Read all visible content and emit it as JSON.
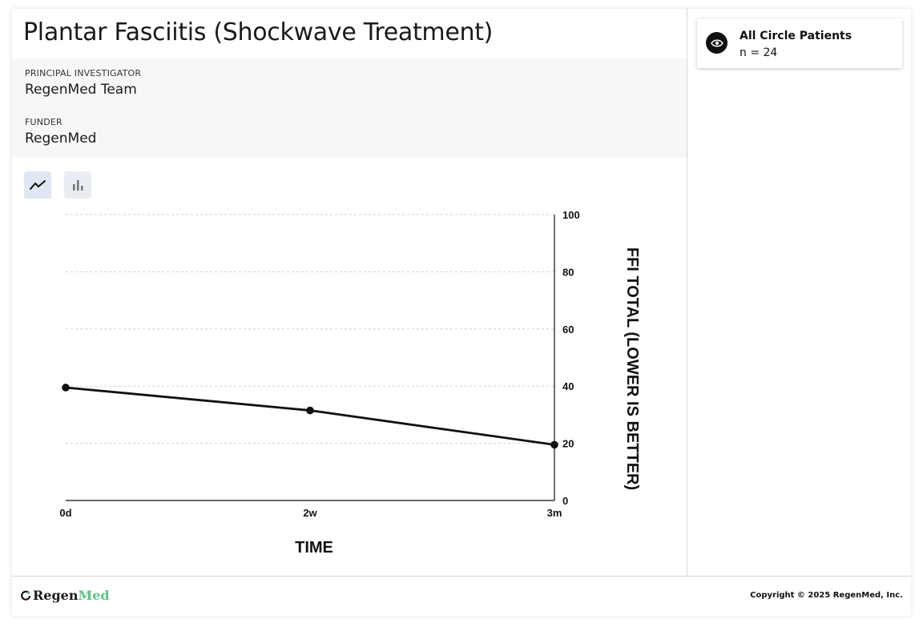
{
  "page": {
    "title": "Plantar Fasciitis (Shockwave Treatment)"
  },
  "info": {
    "pi_label": "PRINCIPAL INVESTIGATOR",
    "pi_value": "RegenMed Team",
    "funder_label": "FUNDER",
    "funder_value": "RegenMed"
  },
  "view_toggle": {
    "line_icon": "line-chart-icon",
    "bar_icon": "bar-chart-icon",
    "selected": "line"
  },
  "chart_data": {
    "type": "line",
    "categories": [
      "0d",
      "2w",
      "3m"
    ],
    "series": [
      {
        "values": [
          39.5,
          31.5,
          19.5
        ]
      }
    ],
    "xlabel": "TIME",
    "ylabel": "FFI TOTAL (LOWER IS BETTER)",
    "ylim": [
      0,
      100
    ],
    "yticks": [
      0,
      20,
      40,
      60,
      80,
      100
    ],
    "y_axis_side": "right",
    "grid": true,
    "line_color": "#111111"
  },
  "cohort": {
    "icon": "eye-icon",
    "name": "All Circle Patients",
    "count": "n = 24"
  },
  "footer": {
    "logo_regen": "Regen",
    "logo_med": "Med",
    "brand_color": "#5dc287",
    "copyright": "Copyright © 2025 RegenMed, Inc."
  }
}
